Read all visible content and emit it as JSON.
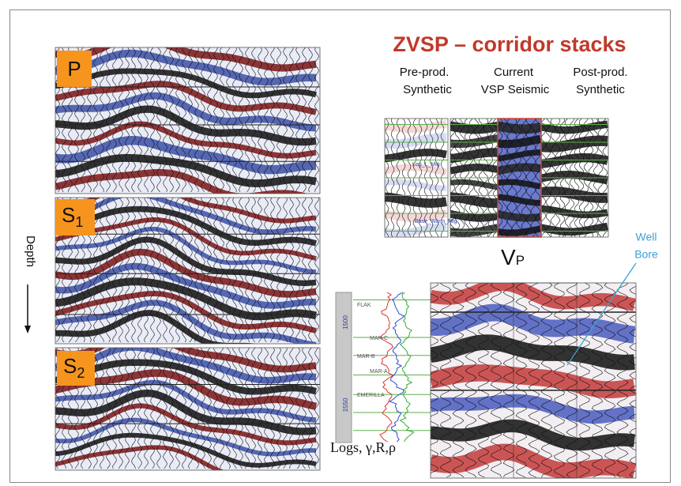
{
  "slide": {
    "title": "ZVSP – corridor stacks",
    "columns": [
      {
        "line1": "Pre-prod.",
        "line2": "Synthetic"
      },
      {
        "line1": "Current",
        "line2": "VSP Seismic"
      },
      {
        "line1": "Post-prod.",
        "line2": "Synthetic"
      }
    ],
    "panel_labels": [
      {
        "letter": "P",
        "subscript": null
      },
      {
        "letter": "S",
        "subscript": "1"
      },
      {
        "letter": "S",
        "subscript": "2"
      }
    ],
    "depth_label": "Depth",
    "velocity_label": {
      "letter": "V",
      "subscript": "P"
    },
    "well_bore": {
      "line1": "Well",
      "line2": "Bore"
    },
    "logs_label": "Logs, γ,R,ρ",
    "vsp_labels": [
      "Log_L_Mig",
      "Base_Warm_Mig"
    ],
    "log_depths": [
      "1500",
      "1550"
    ],
    "log_markers": [
      "FLAK",
      "MAR-C",
      "MAR-B",
      "MAR-A",
      "EMERILLA"
    ]
  }
}
